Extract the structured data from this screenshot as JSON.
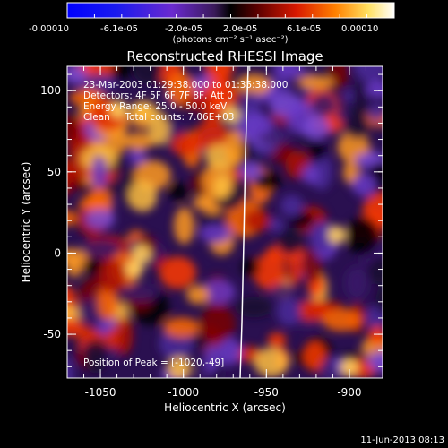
{
  "colorbar": {
    "tick_labels": [
      "-0.00010",
      "-6.1e-05",
      "-2.0e-05",
      "2.0e-05",
      "6.1e-05",
      "0.00010"
    ],
    "units": "(photons cm⁻² s⁻¹ asec⁻²)"
  },
  "plot": {
    "title": "Reconstructed RHESSI Image",
    "annotations": [
      "23-Mar-2003 01:29:38.000 to 01:35:38.000",
      "Detectors: 4F 5F 6F 7F 8F, Att 0",
      "Energy Range: 25.0 - 50.0 keV",
      "Clean     Total counts: 7.06E+03"
    ],
    "peak_label": "Position of Peak = [-1020,-49]",
    "xlabel": "Heliocentric X (arcsec)",
    "ylabel": "Heliocentric Y (arcsec)",
    "x_ticks": [
      "-1050",
      "-1000",
      "-950",
      "-900"
    ],
    "y_ticks": [
      "100",
      "50",
      "0",
      "-50"
    ],
    "x_range": [
      -1070,
      -880
    ],
    "y_range": [
      -77,
      115
    ],
    "limb_color": "#ffffff"
  },
  "footer": {
    "timestamp": "11-Jun-2013 08:13"
  }
}
